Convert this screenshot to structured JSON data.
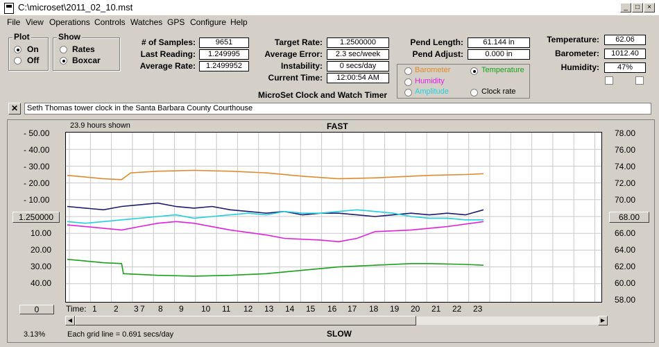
{
  "window": {
    "title": "C:\\microset\\2011_02_10.mst"
  },
  "menu": [
    "File",
    "View",
    "Operations",
    "Controls",
    "Watches",
    "GPS",
    "Configure",
    "Help"
  ],
  "plot_group": {
    "title": "Plot",
    "on": "On",
    "off": "Off",
    "selected": "On"
  },
  "show_group": {
    "title": "Show",
    "rates": "Rates",
    "boxcar": "Boxcar",
    "selected": "Boxcar"
  },
  "stats": {
    "samples_label": "# of Samples:",
    "samples": "9651",
    "last_label": "Last Reading:",
    "last": "1.249995",
    "avg_rate_label": "Average Rate:",
    "avg_rate": "1.2499952"
  },
  "rates": {
    "target_label": "Target Rate:",
    "target": "1.2500000",
    "avg_err_label": "Average Error:",
    "avg_err": "2.3 sec/week",
    "instab_label": "Instability:",
    "instab": "0 secs/day",
    "time_label": "Current Time:",
    "time": "12:00:54 AM"
  },
  "app_name": "MicroSet Clock and Watch Timer",
  "pend": {
    "length_label": "Pend Length:",
    "length": "61.144 in",
    "adjust_label": "Pend Adjust:",
    "adjust": "0.000 in"
  },
  "env": {
    "temp_label": "Temperature:",
    "temp": "62.06",
    "baro_label": "Barometer:",
    "baro": "1012.40",
    "hum_label": "Humidity:",
    "hum": "47%"
  },
  "series_select": {
    "barometer": "Barometer",
    "temperature": "Temperature",
    "humidity": "Humidity",
    "amplitude": "Amplitude",
    "clock_rate": "Clock rate",
    "colors": {
      "barometer": "#e08a2c",
      "temperature": "#1aa01a",
      "humidity": "#e020e0",
      "amplitude": "#20d0e0",
      "clock_rate": "#000000"
    }
  },
  "description": "Seth Thomas tower clock in the Santa Barbara County Courthouse",
  "chart_header": {
    "hours_shown": "23.9 hours shown",
    "fast": "FAST",
    "slow": "SLOW"
  },
  "left_buttons": {
    "rate": "1.250000",
    "zero": "0"
  },
  "right_button": "68.00",
  "left_axis": [
    "50.00",
    "40.00",
    "30.00",
    "20.00",
    "10.00",
    "10.00",
    "20.00",
    "30.00",
    "40.00"
  ],
  "right_axis": [
    "78.00",
    "76.00",
    "74.00",
    "72.00",
    "70.00",
    "66.00",
    "64.00",
    "62.00",
    "60.00",
    "58.00"
  ],
  "time_label": "Time:",
  "time_ticks": [
    "1",
    "2",
    "3",
    "7",
    "8",
    "9",
    "10",
    "11",
    "12",
    "13",
    "14",
    "15",
    "16",
    "17",
    "18",
    "19",
    "20",
    "21",
    "22",
    "23"
  ],
  "footer": {
    "percent": "3.13%",
    "grid_note": "Each grid line = 0.691 secs/day"
  },
  "chart_data": {
    "type": "line",
    "x_label": "Time",
    "grid": true,
    "series": [
      {
        "name": "Barometer",
        "color": "#e08a2c",
        "x": [
          0,
          1,
          2,
          3,
          3.5,
          5,
          7,
          9,
          11,
          13,
          15,
          17,
          19,
          20,
          22,
          23
        ],
        "y": [
          24.5,
          23.5,
          22.5,
          22.0,
          26,
          27,
          27.5,
          27,
          26,
          24,
          22.5,
          23,
          24,
          24.5,
          25,
          25.5
        ]
      },
      {
        "name": "Clock rate",
        "color": "#1a1a6e",
        "x": [
          0,
          1,
          2,
          3,
          4,
          5,
          6,
          7,
          8,
          9,
          10,
          11,
          12,
          13,
          14,
          15,
          16,
          17,
          18,
          19,
          20,
          21,
          22,
          23
        ],
        "y": [
          6,
          5,
          4,
          6,
          7,
          8,
          6,
          5,
          6,
          4,
          3,
          2,
          3,
          1,
          2,
          2,
          1,
          0,
          1,
          2,
          1,
          2,
          1,
          4
        ]
      },
      {
        "name": "Amplitude",
        "color": "#20d0e0",
        "x": [
          0,
          1,
          2,
          3,
          4,
          5,
          6,
          7,
          8,
          9,
          10,
          11,
          12,
          13,
          14,
          15,
          16,
          17,
          18,
          19,
          20,
          21,
          22,
          23
        ],
        "y": [
          -3,
          -4,
          -3,
          -2,
          -1,
          0,
          1,
          -1,
          0,
          1,
          2,
          1,
          3,
          2,
          2,
          3,
          4,
          3,
          2,
          0,
          -1,
          -1,
          -2,
          -2
        ]
      },
      {
        "name": "Humidity",
        "color": "#e020e0",
        "x": [
          0,
          2,
          3,
          4,
          5,
          6,
          7,
          9,
          11,
          12,
          14,
          15,
          16,
          17,
          19,
          21,
          23
        ],
        "y": [
          -5,
          -7,
          -8,
          -6,
          -4,
          -3,
          -4,
          -8,
          -11,
          -13,
          -14,
          -15,
          -13,
          -9,
          -8,
          -6,
          -3
        ]
      },
      {
        "name": "Temperature",
        "color": "#1aa01a",
        "x": [
          0,
          1,
          2,
          3,
          3.1,
          5,
          7,
          9,
          11,
          13,
          15,
          17,
          19,
          20,
          22,
          23
        ],
        "y": [
          -25.5,
          -26.5,
          -27.5,
          -28,
          -34,
          -35,
          -35.5,
          -35,
          -34,
          -32,
          -30,
          -29,
          -28,
          -28,
          -28.5,
          -29
        ]
      }
    ]
  }
}
